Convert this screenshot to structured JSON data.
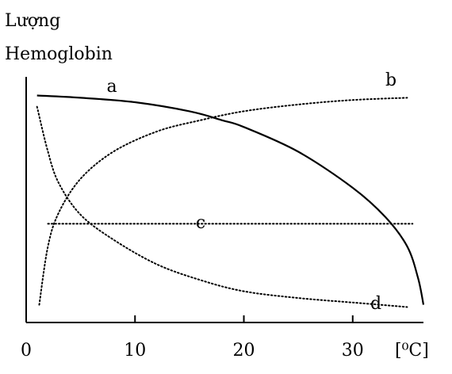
{
  "chart_data": {
    "type": "line",
    "ylabel_lines": [
      "Lượng",
      "Hemoglobin"
    ],
    "xlabel": "[⁰C]",
    "xlim": [
      0,
      36.5
    ],
    "x_ticks": [
      "0",
      "10",
      "20",
      "30"
    ],
    "y_ticks": [],
    "grid": false,
    "series": [
      {
        "name": "a",
        "style": "solid",
        "points": [
          [
            1,
            0.97
          ],
          [
            5,
            0.96
          ],
          [
            10,
            0.94
          ],
          [
            15,
            0.9
          ],
          [
            18,
            0.86
          ],
          [
            20,
            0.83
          ],
          [
            25,
            0.72
          ],
          [
            30,
            0.56
          ],
          [
            33,
            0.43
          ],
          [
            35,
            0.3
          ],
          [
            36,
            0.16
          ],
          [
            36.5,
            0.04
          ]
        ]
      },
      {
        "name": "b",
        "style": "dotted",
        "points": [
          [
            1.2,
            0.04
          ],
          [
            2,
            0.3
          ],
          [
            3,
            0.45
          ],
          [
            5,
            0.6
          ],
          [
            8,
            0.72
          ],
          [
            12,
            0.81
          ],
          [
            16,
            0.86
          ],
          [
            20,
            0.9
          ],
          [
            25,
            0.93
          ],
          [
            30,
            0.95
          ],
          [
            35,
            0.96
          ]
        ]
      },
      {
        "name": "c",
        "style": "dotted",
        "points": [
          [
            2,
            0.4
          ],
          [
            35.5,
            0.4
          ]
        ]
      },
      {
        "name": "d",
        "style": "dotted",
        "points": [
          [
            1,
            0.92
          ],
          [
            2,
            0.72
          ],
          [
            3,
            0.58
          ],
          [
            5,
            0.44
          ],
          [
            8,
            0.33
          ],
          [
            12,
            0.22
          ],
          [
            16,
            0.15
          ],
          [
            20,
            0.1
          ],
          [
            25,
            0.07
          ],
          [
            30,
            0.05
          ],
          [
            35,
            0.03
          ]
        ]
      }
    ]
  }
}
